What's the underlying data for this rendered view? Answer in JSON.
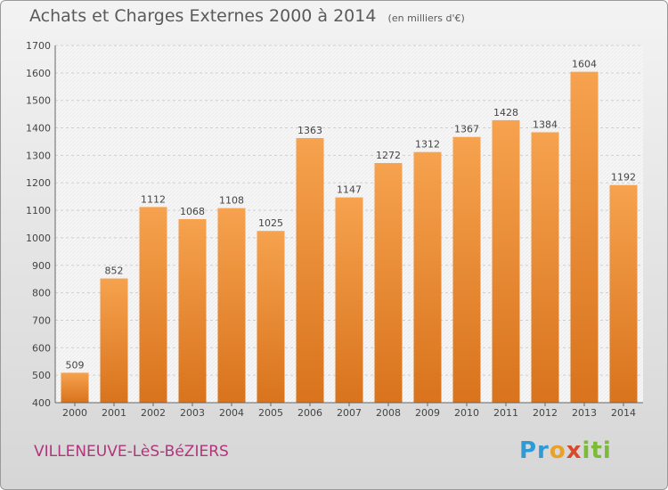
{
  "header": {
    "title": "Achats et Charges Externes 2000 à 2014",
    "unit": "(en milliers d'€)"
  },
  "footer": {
    "commune": "VILLENEUVE-LèS-BéZIERS",
    "logo": "Proxiti"
  },
  "colors": {
    "bar_top": "#f6a24e",
    "bar_bottom": "#d9731d",
    "commune": "#b0357a",
    "axis_text": "#444444"
  },
  "chart_data": {
    "type": "bar",
    "title": "Achats et Charges Externes 2000 à 2014",
    "subtitle": "(en milliers d'€)",
    "categories": [
      "2000",
      "2001",
      "2002",
      "2003",
      "2004",
      "2005",
      "2006",
      "2007",
      "2008",
      "2009",
      "2010",
      "2011",
      "2012",
      "2013",
      "2014"
    ],
    "values": [
      509,
      852,
      1112,
      1068,
      1108,
      1025,
      1363,
      1147,
      1272,
      1312,
      1367,
      1428,
      1384,
      1604,
      1192
    ],
    "ylim": [
      400,
      1700
    ],
    "yticks": [
      400,
      500,
      600,
      700,
      800,
      900,
      1000,
      1100,
      1200,
      1300,
      1400,
      1500,
      1600,
      1700
    ],
    "grid": true,
    "data_labels": true
  }
}
